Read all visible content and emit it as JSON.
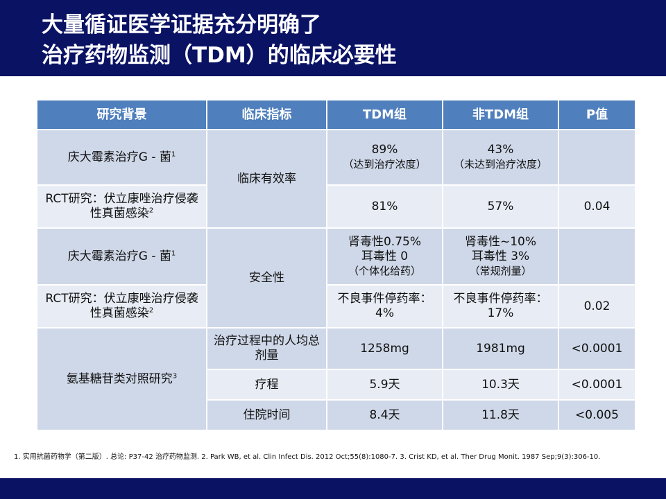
{
  "title": {
    "line1": "大量循证医学证据充分明确了",
    "line2": "治疗药物监测（TDM）的临床必要性"
  },
  "table": {
    "headers": [
      "研究背景",
      "临床指标",
      "TDM组",
      "非TDM组",
      "P值"
    ],
    "study1": "庆大霉素治疗G - 菌",
    "study2": "RCT研究：伏立康唑治疗侵袭性真菌感染",
    "study3": "氨基糖苷类对照研究",
    "sup1": "1",
    "sup2": "2",
    "sup3": "3",
    "metric_efficacy": "临床有效率",
    "metric_safety": "安全性",
    "metric_dose": "治疗过程中的人均总剂量",
    "metric_course": "疗程",
    "metric_stay": "住院时间",
    "eff_tdm_1_val": "89%",
    "eff_tdm_1_note": "（达到治疗浓度）",
    "eff_non_1_val": "43%",
    "eff_non_1_note": "（未达到治疗浓度）",
    "eff_tdm_2": "81%",
    "eff_non_2": "57%",
    "eff_p_2": "0.04",
    "safe_tdm_1_a": "肾毒性0.75%",
    "safe_tdm_1_b": "耳毒性 0",
    "safe_tdm_1_c": "（个体化给药）",
    "safe_non_1_a": "肾毒性~10%",
    "safe_non_1_b": "耳毒性 3%",
    "safe_non_1_c": "（常规剂量）",
    "safe_tdm_2": "不良事件停药率：4%",
    "safe_non_2": "不良事件停药率：17%",
    "safe_p_2": "0.02",
    "dose_tdm": "1258mg",
    "dose_non": "1981mg",
    "dose_p": "<0.0001",
    "course_tdm": "5.9天",
    "course_non": "10.3天",
    "course_p": "<0.0001",
    "stay_tdm": "8.4天",
    "stay_non": "11.8天",
    "stay_p": "<0.005"
  },
  "footnote": "1. 实用抗菌药物学（第二版）. 总论: P37-42 治疗药物监测.  2. Park WB, et al. Clin Infect Dis. 2012 Oct;55(8):1080-7.  3. Crist KD, et al. Ther Drug Monit. 1987 Sep;9(3):306-10.",
  "colors": {
    "header_bg": "#0a1264",
    "table_header": "#4f7fbd",
    "row_dark": "#cfd8e8",
    "row_light": "#e8edf5"
  }
}
